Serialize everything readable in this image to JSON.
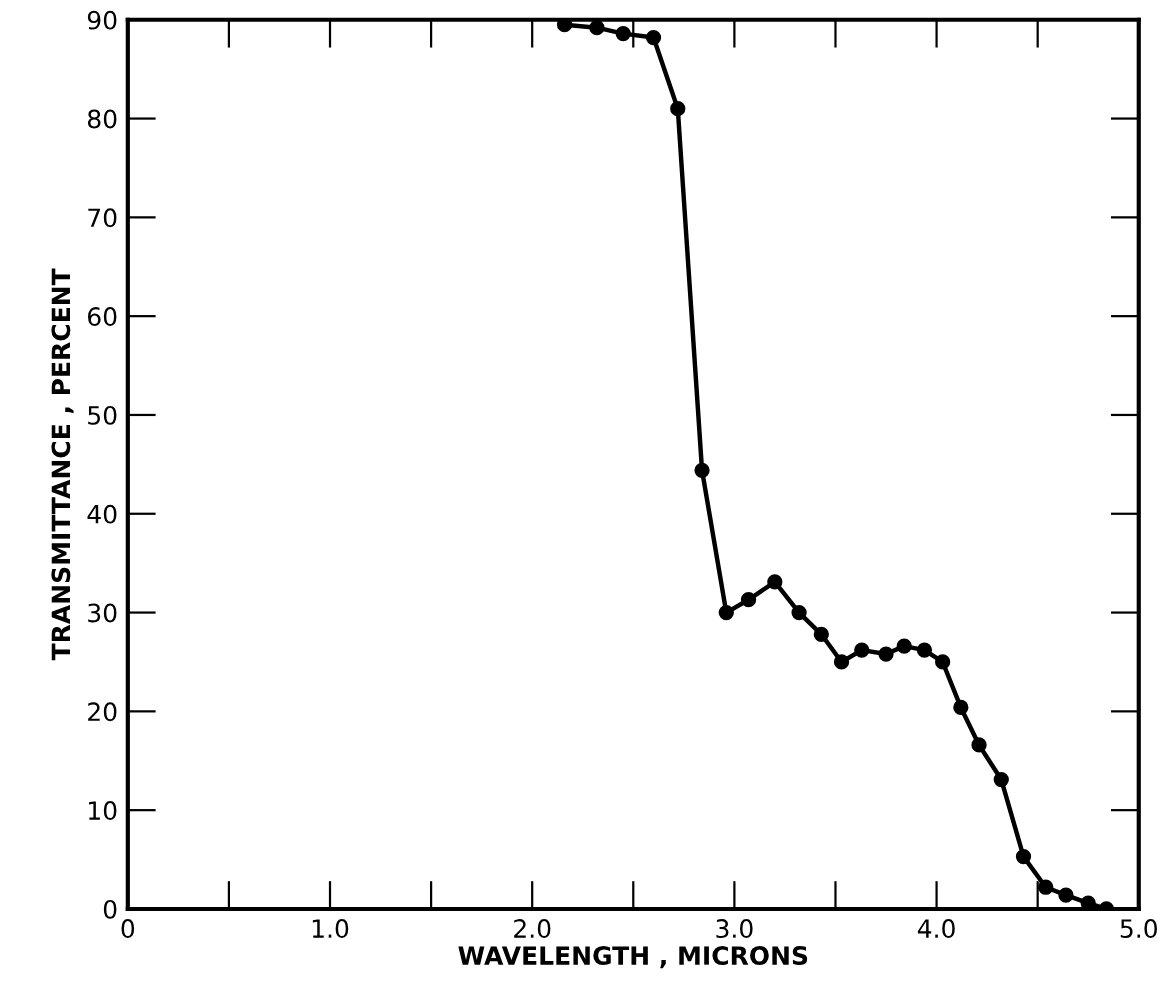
{
  "chart_data": {
    "type": "line",
    "xlabel": "WAVELENGTH , MICRONS",
    "ylabel": "TRANSMITTANCE , PERCENT",
    "x": [
      2.16,
      2.32,
      2.45,
      2.6,
      2.72,
      2.84,
      2.96,
      3.07,
      3.2,
      3.32,
      3.43,
      3.53,
      3.63,
      3.75,
      3.84,
      3.94,
      4.03,
      4.12,
      4.21,
      4.32,
      4.43,
      4.54,
      4.64,
      4.75,
      4.84
    ],
    "series": [
      {
        "color": "#000000",
        "values": [
          89.5,
          89.2,
          88.6,
          88.2,
          81,
          44.4,
          30,
          31.3,
          33.1,
          30,
          27.8,
          25,
          26.2,
          25.8,
          26.6,
          26.2,
          25,
          20.4,
          16.6,
          13.1,
          5.3,
          2.2,
          1.4,
          0.6,
          0
        ]
      }
    ],
    "xlim": [
      0,
      5
    ],
    "ylim": [
      0,
      90
    ],
    "xticks": [
      0,
      {
        "value": 0.5,
        "label": null
      },
      {
        "value": 1,
        "label": "1.0"
      },
      {
        "value": 1.5,
        "label": null
      },
      {
        "value": 2,
        "label": "2.0"
      },
      {
        "value": 2.5,
        "label": null
      },
      {
        "value": 3,
        "label": "3.0"
      },
      {
        "value": 3.5,
        "label": null
      },
      {
        "value": 4,
        "label": "4.0"
      },
      {
        "value": 4.5,
        "label": null
      },
      {
        "value": 5,
        "label": "5.0"
      }
    ],
    "yticks": [
      0,
      10,
      20,
      30,
      40,
      50,
      60,
      70,
      80,
      90
    ],
    "grid": false,
    "marker": "circle",
    "line_style": "solid"
  }
}
